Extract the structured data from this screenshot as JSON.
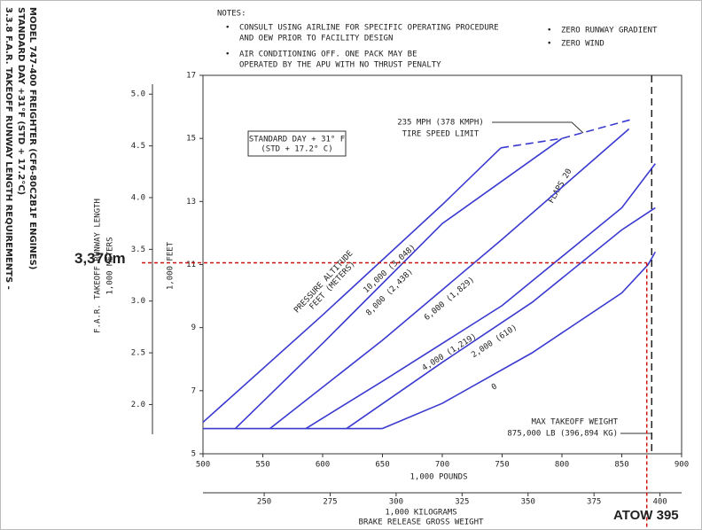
{
  "chart_data": {
    "type": "line",
    "title": "3.3.8 F.A.R. TAKEOFF RUNWAY LENGTH REQUIREMENTS -",
    "subtitle": "STANDARD DAY +31°F (STD + 17.2°C)",
    "model": "MODEL 747-400 FREIGHTER (CF6-80C2B1F ENGINES)",
    "notes": {
      "heading": "NOTES:",
      "items": [
        "CONSULT USING AIRLINE FOR SPECIFIC OPERATING PROCEDURE",
        "AND OEW PRIOR TO FACILITY DESIGN",
        "AIR CONDITIONING OFF.  ONE PACK MAY BE",
        "OPERATED BY THE APU WITH NO THRUST PENALTY",
        "ZERO RUNWAY GRADIENT",
        "ZERO WIND"
      ]
    },
    "condition_box": [
      "STANDARD DAY + 31° F",
      "(STD + 17.2° C)"
    ],
    "tire_limit_label": [
      "235 MPH (378 KMPH)",
      "TIRE SPEED LIMIT"
    ],
    "altitude_label": [
      "PRESSURE ALTITUDE",
      "FEET   (METERS)"
    ],
    "flaps_label": "FLAPS 20",
    "mtow": {
      "value": 875,
      "label": [
        "MAX TAKEOFF WEIGHT",
        "875,000 LB (396,894 KG)"
      ]
    },
    "y_label": "1,000 FEET",
    "y2_label": [
      "F.A.R. TAKEOFF RUNWAY LENGTH",
      "1,000 METERS"
    ],
    "x_label": "1,000 POUNDS",
    "x2_label": "1,000 KILOGRAMS",
    "x_title": "BRAKE RELEASE GROSS WEIGHT",
    "xlim": [
      500,
      900
    ],
    "xticks": [
      500,
      550,
      600,
      650,
      700,
      750,
      800,
      850,
      900
    ],
    "ylim": [
      5,
      17
    ],
    "yticks": [
      5,
      7,
      9,
      11,
      13,
      15,
      17
    ],
    "y2lim": [
      1.524,
      5.182
    ],
    "y2ticks": [
      {
        "value": 2,
        "label": "2.0"
      },
      2.5,
      {
        "value": 3,
        "label": "3.0"
      },
      3.5,
      {
        "value": 4,
        "label": "4.0"
      },
      4.5,
      {
        "value": 5,
        "label": "5.0"
      }
    ],
    "x2lim": [
      226.8,
      408.2
    ],
    "x2ticks": [
      250,
      275,
      300,
      325,
      350,
      375,
      400
    ],
    "series": [
      {
        "name": "10,000   (3,048)",
        "color": "#3a3ad0",
        "x": [
          500,
          600,
          700,
          749
        ],
        "values": [
          6,
          9.4,
          12.9,
          14.7
        ]
      },
      {
        "name": "8,000   (2,438)",
        "color": "#3a3ad0",
        "x": [
          527,
          600,
          700,
          800
        ],
        "values": [
          5.8,
          8.5,
          12.3,
          15
        ]
      },
      {
        "name": "6,000   (1,829)",
        "color": "#3a3ad0",
        "x": [
          556,
          650,
          750,
          856
        ],
        "values": [
          5.8,
          8.6,
          11.8,
          15.3
        ]
      },
      {
        "name": "4,000   (1,219)",
        "color": "#3a3ad0",
        "x": [
          586,
          650,
          750,
          850,
          878
        ],
        "values": [
          5.8,
          7.3,
          9.7,
          12.8,
          14.2
        ]
      },
      {
        "name": "2,000   (610)",
        "color": "#3a3ad0",
        "x": [
          620,
          700,
          775,
          850,
          878
        ],
        "values": [
          5.8,
          7.9,
          9.8,
          12.1,
          12.8
        ]
      },
      {
        "name": "0",
        "color": "#3a3ad0",
        "x": [
          650,
          700,
          775,
          850,
          872,
          878
        ],
        "values": [
          5.8,
          6.6,
          8.2,
          10.1,
          11,
          11.4
        ]
      },
      {
        "color": "#3a3ad0",
        "dashed": true,
        "x": [
          749,
          800,
          858
        ],
        "values": [
          14.7,
          15,
          15.6
        ]
      },
      {
        "color": "#3a3ad0",
        "x": [
          500,
          650
        ],
        "values": [
          5.8,
          5.8
        ]
      }
    ],
    "overlay": {
      "color": "#cc1111",
      "runway_m": 3.37,
      "runway_label": "3,370m",
      "atow_kg": 395,
      "atow_label": "ATOW 395"
    }
  }
}
